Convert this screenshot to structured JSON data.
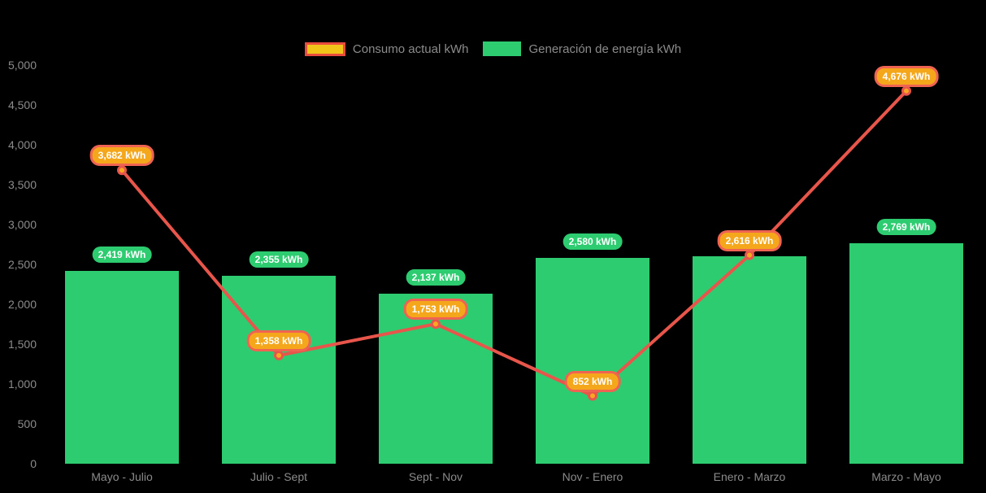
{
  "background": "#000000",
  "legend": {
    "items": [
      {
        "id": "consumo",
        "label": "Consumo actual kWh",
        "swatch_fill": "#F0C419",
        "swatch_border": "#E74C3C"
      },
      {
        "id": "generacion",
        "label": "Generación de energía kWh",
        "swatch_fill": "#2ECC71",
        "swatch_border": "#2ECC71"
      }
    ],
    "text_color": "#8B8B8B"
  },
  "axes": {
    "y_ticks": [
      "5,000",
      "4,500",
      "4,000",
      "3,500",
      "3,000",
      "2,500",
      "2,000",
      "1,500",
      "1,000",
      "500",
      "0"
    ],
    "ylim": [
      0,
      5000
    ],
    "text_color": "#8B8B8B"
  },
  "chart_data": {
    "type": "bar",
    "subtype": "combo-bar-line",
    "categories": [
      "Mayo - Julio",
      "Julio - Sept",
      "Sept - Nov",
      "Nov - Enero",
      "Enero - Marzo",
      "Marzo - Mayo"
    ],
    "series": [
      {
        "name": "Generación de energía kWh",
        "type": "bar",
        "color": "#2ECC71",
        "values": [
          2419,
          2355,
          2137,
          2580,
          2600,
          2769
        ],
        "labels": [
          "2,419 kWh",
          "2,355 kWh",
          "2,137 kWh",
          "2,580 kWh",
          "",
          "2,769 kWh"
        ],
        "label_badge_fill": "#2ECC71",
        "label_text_color": "#FFFFFF",
        "hidden_label_index": 4
      },
      {
        "name": "Consumo actual kWh",
        "type": "line",
        "color": "#E8564B",
        "marker_fill": "#F6A821",
        "marker_stroke": "#E8564B",
        "values": [
          3682,
          1358,
          1753,
          852,
          2616,
          4676
        ],
        "labels": [
          "3,682 kWh",
          "1,358 kWh",
          "1,753 kWh",
          "852 kWh",
          "2,616 kWh",
          "4,676 kWh"
        ],
        "label_badge_fill": "#F5A71B",
        "label_badge_border": "#EE6352",
        "label_text_color": "#FFFFFF"
      }
    ],
    "ylim": [
      0,
      5000
    ],
    "grid": false,
    "legend_position": "top-center"
  }
}
